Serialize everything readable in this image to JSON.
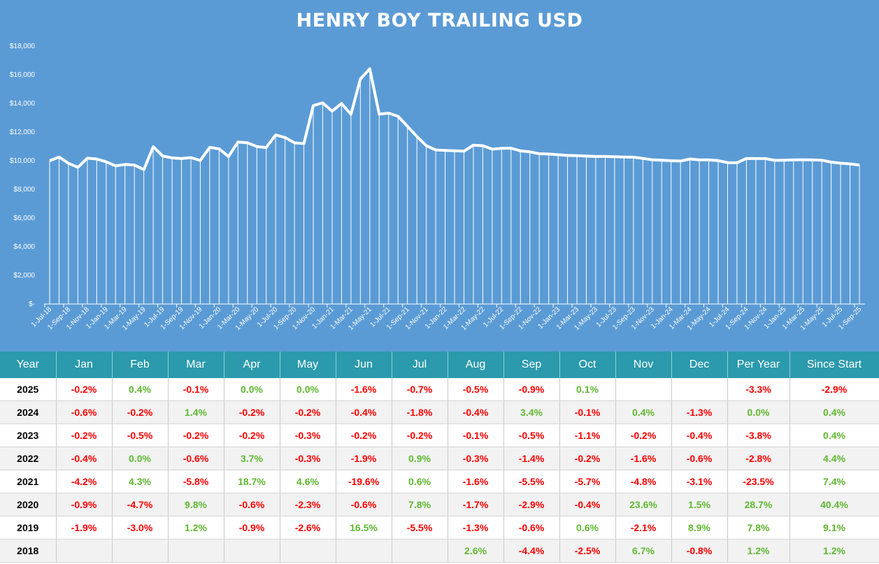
{
  "chart_data": {
    "type": "area",
    "title": "HENRY BOY TRAILING USD",
    "ylim": [
      0,
      18000
    ],
    "yticks": [
      {
        "value": 0,
        "label": "$-"
      },
      {
        "value": 2000,
        "label": "$2,000"
      },
      {
        "value": 4000,
        "label": "$4,000"
      },
      {
        "value": 6000,
        "label": "$6,000"
      },
      {
        "value": 8000,
        "label": "$8,000"
      },
      {
        "value": 10000,
        "label": "$10,000"
      },
      {
        "value": 12000,
        "label": "$12,000"
      },
      {
        "value": 14000,
        "label": "$14,000"
      },
      {
        "value": 16000,
        "label": "$16,000"
      },
      {
        "value": 18000,
        "label": "$18,000"
      }
    ],
    "x": [
      "1-Jul-18",
      "1-Aug-18",
      "1-Sep-18",
      "1-Oct-18",
      "1-Nov-18",
      "1-Dec-18",
      "1-Jan-19",
      "1-Feb-19",
      "1-Mar-19",
      "1-Apr-19",
      "1-May-19",
      "1-Jun-19",
      "1-Jul-19",
      "1-Aug-19",
      "1-Sep-19",
      "1-Oct-19",
      "1-Nov-19",
      "1-Dec-19",
      "1-Jan-20",
      "1-Feb-20",
      "1-Mar-20",
      "1-Apr-20",
      "1-May-20",
      "1-Jun-20",
      "1-Jul-20",
      "1-Aug-20",
      "1-Sep-20",
      "1-Oct-20",
      "1-Nov-20",
      "1-Dec-20",
      "1-Jan-21",
      "1-Feb-21",
      "1-Mar-21",
      "1-Apr-21",
      "1-May-21",
      "1-Jun-21",
      "1-Jul-21",
      "1-Aug-21",
      "1-Sep-21",
      "1-Oct-21",
      "1-Nov-21",
      "1-Dec-21",
      "1-Jan-22",
      "1-Feb-22",
      "1-Mar-22",
      "1-Apr-22",
      "1-May-22",
      "1-Jun-22",
      "1-Jul-22",
      "1-Aug-22",
      "1-Sep-22",
      "1-Oct-22",
      "1-Nov-22",
      "1-Dec-22",
      "1-Jan-23",
      "1-Feb-23",
      "1-Mar-23",
      "1-Apr-23",
      "1-May-23",
      "1-Jun-23",
      "1-Jul-23",
      "1-Aug-23",
      "1-Sep-23",
      "1-Oct-23",
      "1-Nov-23",
      "1-Dec-23",
      "1-Jan-24",
      "1-Feb-24",
      "1-Mar-24",
      "1-Apr-24",
      "1-May-24",
      "1-Jun-24",
      "1-Jul-24",
      "1-Aug-24",
      "1-Sep-24",
      "1-Oct-24",
      "1-Nov-24",
      "1-Dec-24",
      "1-Jan-25",
      "1-Feb-25",
      "1-Mar-25",
      "1-Apr-25",
      "1-May-25",
      "1-Jun-25",
      "1-Jul-25",
      "1-Aug-25",
      "1-Sep-25"
    ],
    "xtick_labels": [
      "1-Jul-18",
      "1-Sep-18",
      "1-Nov-18",
      "1-Jan-19",
      "1-Mar-19",
      "1-May-19",
      "1-Jul-19",
      "1-Sep-19",
      "1-Nov-19",
      "1-Jan-20",
      "1-Mar-20",
      "1-May-20",
      "1-Jul-20",
      "1-Sep-20",
      "1-Nov-20",
      "1-Jan-21",
      "1-Mar-21",
      "1-May-21",
      "1-Jul-21",
      "1-Sep-21",
      "1-Nov-21",
      "1-Jan-22",
      "1-Mar-22",
      "1-May-22",
      "1-Jul-22",
      "1-Sep-22",
      "1-Nov-22",
      "1-Jan-23",
      "1-Mar-23",
      "1-May-23",
      "1-Jul-23",
      "1-Sep-23",
      "1-Nov-23",
      "1-Jan-24",
      "1-Mar-24",
      "1-May-24",
      "1-Jul-24",
      "1-Sep-24",
      "1-Nov-24",
      "1-Jan-25",
      "1-Mar-25",
      "1-May-25",
      "1-Jul-25",
      "1-Sep-25"
    ],
    "values": [
      10000,
      10260,
      9820,
      9540,
      10180,
      10120,
      9920,
      9640,
      9740,
      9700,
      9380,
      10980,
      10330,
      10200,
      10150,
      10220,
      10020,
      10930,
      10830,
      10300,
      11300,
      11260,
      10990,
      10920,
      11800,
      11620,
      11250,
      11200,
      13850,
      14040,
      13460,
      14000,
      13240,
      15700,
      16420,
      13250,
      13320,
      13100,
      12400,
      11700,
      11050,
      10750,
      10720,
      10700,
      10670,
      11090,
      11050,
      10810,
      10870,
      10880,
      10690,
      10620,
      10490,
      10470,
      10420,
      10370,
      10350,
      10320,
      10300,
      10300,
      10280,
      10260,
      10250,
      10160,
      10070,
      10040,
      10000,
      9980,
      10120,
      10060,
      10060,
      10010,
      9870,
      9860,
      10160,
      10150,
      10150,
      10030,
      10040,
      10060,
      10070,
      10060,
      10040,
      9900,
      9830,
      9780,
      9700
    ],
    "grid": false,
    "colors": {
      "background": "#5b9bd5",
      "line": "#ffffff",
      "neg": "#ff0000",
      "pos": "#5fb830",
      "header": "#2b9aac"
    }
  },
  "table": {
    "headers": [
      "Year",
      "Jan",
      "Feb",
      "Mar",
      "Apr",
      "May",
      "Jun",
      "Jul",
      "Aug",
      "Sep",
      "Oct",
      "Nov",
      "Dec",
      "Per Year",
      "Since Start"
    ],
    "rows": [
      {
        "year": "2025",
        "cells": [
          "-0.2%",
          "0.4%",
          "-0.1%",
          "0.0%",
          "0.0%",
          "-1.6%",
          "-0.7%",
          "-0.5%",
          "-0.9%",
          "0.1%",
          "",
          "",
          "-3.3%",
          "-2.9%"
        ]
      },
      {
        "year": "2024",
        "cells": [
          "-0.6%",
          "-0.2%",
          "1.4%",
          "-0.2%",
          "-0.2%",
          "-0.4%",
          "-1.8%",
          "-0.4%",
          "3.4%",
          "-0.1%",
          "0.4%",
          "-1.3%",
          "0.0%",
          "0.4%"
        ]
      },
      {
        "year": "2023",
        "cells": [
          "-0.2%",
          "-0.5%",
          "-0.2%",
          "-0.2%",
          "-0.3%",
          "-0.2%",
          "-0.2%",
          "-0.1%",
          "-0.5%",
          "-1.1%",
          "-0.2%",
          "-0.4%",
          "-3.8%",
          "0.4%"
        ]
      },
      {
        "year": "2022",
        "cells": [
          "-0.4%",
          "0.0%",
          "-0.6%",
          "3.7%",
          "-0.3%",
          "-1.9%",
          "0.9%",
          "-0.3%",
          "-1.4%",
          "-0.2%",
          "-1.6%",
          "-0.6%",
          "-2.8%",
          "4.4%"
        ]
      },
      {
        "year": "2021",
        "cells": [
          "-4.2%",
          "4.3%",
          "-5.8%",
          "18.7%",
          "4.6%",
          "-19.6%",
          "0.6%",
          "-1.6%",
          "-5.5%",
          "-5.7%",
          "-4.8%",
          "-3.1%",
          "-23.5%",
          "7.4%"
        ]
      },
      {
        "year": "2020",
        "cells": [
          "-0.9%",
          "-4.7%",
          "9.8%",
          "-0.6%",
          "-2.3%",
          "-0.6%",
          "7.8%",
          "-1.7%",
          "-2.9%",
          "-0.4%",
          "23.6%",
          "1.5%",
          "28.7%",
          "40.4%"
        ]
      },
      {
        "year": "2019",
        "cells": [
          "-1.9%",
          "-3.0%",
          "1.2%",
          "-0.9%",
          "-2.6%",
          "16.5%",
          "-5.5%",
          "-1.3%",
          "-0.6%",
          "0.6%",
          "-2.1%",
          "8.9%",
          "7.8%",
          "9.1%"
        ]
      },
      {
        "year": "2018",
        "cells": [
          "",
          "",
          "",
          "",
          "",
          "",
          "",
          "2.6%",
          "-4.4%",
          "-2.5%",
          "6.7%",
          "-0.8%",
          "1.2%",
          "1.2%"
        ]
      }
    ]
  }
}
